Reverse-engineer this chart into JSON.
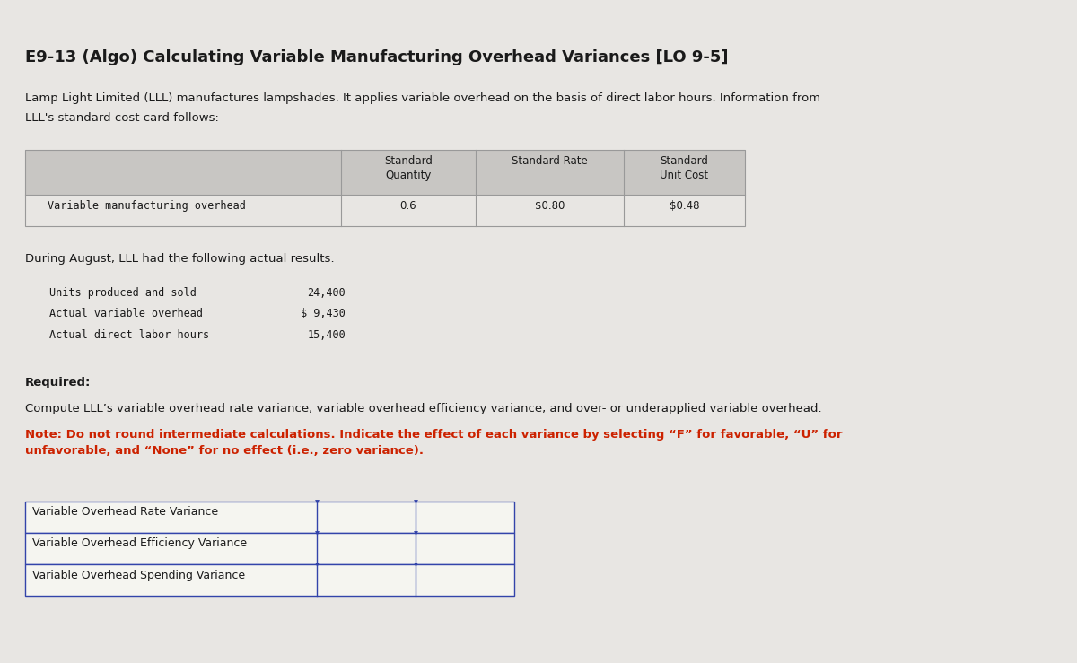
{
  "title": "E9-13 (Algo) Calculating Variable Manufacturing Overhead Variances [LO 9-5]",
  "intro_line1": "Lamp Light Limited (LLL) manufactures lampshades. It applies variable overhead on the basis of direct labor hours. Information from",
  "intro_line2": "LLL's standard cost card follows:",
  "table1_header_col2": "Standard\nQuantity",
  "table1_header_col3": "Standard Rate",
  "table1_header_col4": "Standard\nUnit Cost",
  "table1_row_label": "Variable manufacturing overhead",
  "table1_row_val1": "0.6",
  "table1_row_val2": "$0.80",
  "table1_row_val3": "$0.48",
  "during_text": "During August, LLL had the following actual results:",
  "actual_labels": [
    "Units produced and sold",
    "Actual variable overhead",
    "Actual direct labor hours"
  ],
  "actual_values": [
    "24,400",
    "$ 9,430",
    "15,400"
  ],
  "required_label": "Required:",
  "required_text": "Compute LLL’s variable overhead rate variance, variable overhead efficiency variance, and over- or underapplied variable overhead.",
  "note_text": "Note: Do not round intermediate calculations. Indicate the effect of each variance by selecting “F” for favorable, “U” for\nunfavorable, and “None” for no effect (i.e., zero variance).",
  "table2_rows": [
    "Variable Overhead Rate Variance",
    "Variable Overhead Efficiency Variance",
    "Variable Overhead Spending Variance"
  ],
  "bg_color": "#e8e6e3",
  "header_bg": "#c8c6c3",
  "table_border_color": "#3344aa",
  "title_color": "#1a1a1a",
  "text_color": "#1a1a1a",
  "note_color": "#cc2200",
  "mono_font": "monospace",
  "sans_font": "DejaVu Sans"
}
